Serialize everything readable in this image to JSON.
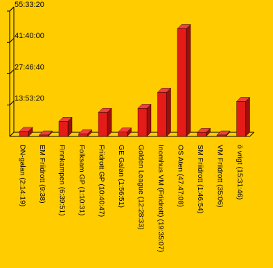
{
  "chart_data": {
    "type": "bar",
    "bar_style": "3d",
    "value_unit": "duration h:mm:ss",
    "ylim_seconds": [
      0,
      200000
    ],
    "y_ticks": [
      {
        "seconds": 50000,
        "label": "13:53:20"
      },
      {
        "seconds": 100000,
        "label": "27:46:40"
      },
      {
        "seconds": 150000,
        "label": "41:40:00"
      },
      {
        "seconds": 200000,
        "label": "55:33:20"
      }
    ],
    "categories": [
      "DN-galan (2:14:19)",
      "EM Friidrott (9:38)",
      "Finnkampen (6:39:51)",
      "Folksam GP (1:10:31)",
      "Friidrott GP (10:40:47)",
      "GE Galan (1:56:51)",
      "Golden League (12:28:33)",
      "Inomhus VM (Friidrott) (19:35:07)",
      "OS Aten (47:47:08)",
      "SM Friidrott (1:46:54)",
      "VM Friidrott (35:06)",
      "ö vrigt (15:31:46)"
    ],
    "values_seconds": [
      8059,
      578,
      23991,
      4231,
      38447,
      7011,
      44913,
      70507,
      172028,
      6414,
      2106,
      55906
    ],
    "grid": false,
    "legend": "none",
    "colors": {
      "background": "#ffcc00",
      "bar_front": "#e41b17",
      "bar_top": "#f0403a",
      "bar_side": "#9c0f0c",
      "axis": "#000000"
    }
  }
}
